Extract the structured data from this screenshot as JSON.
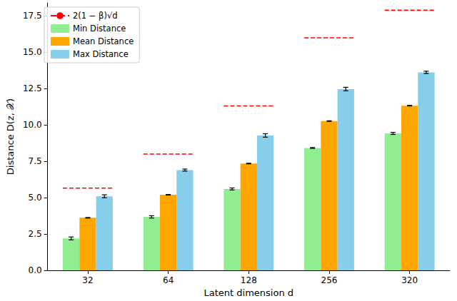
{
  "chart_data": {
    "type": "bar",
    "x_label": "Latent dimension d",
    "y_label": "Distance D(z, 𝒳)",
    "categories": [
      "32",
      "64",
      "128",
      "256",
      "320"
    ],
    "series": [
      {
        "name": "2(1 − β)√d",
        "type": "line",
        "color": "#ff0000",
        "line_style": "dashed",
        "values": [
          5.66,
          8.0,
          11.31,
          16.0,
          17.89
        ]
      },
      {
        "name": "Min Distance",
        "type": "bar",
        "color": "#90ee90",
        "values": [
          2.2,
          3.68,
          5.6,
          8.42,
          9.42
        ],
        "errors": [
          0.1,
          0.08,
          0.07,
          0.03,
          0.07
        ]
      },
      {
        "name": "Mean Distance",
        "type": "bar",
        "color": "#ffa500",
        "values": [
          3.62,
          5.2,
          7.35,
          10.27,
          11.33
        ],
        "errors": [
          0.02,
          0.02,
          0.02,
          0.02,
          0.02
        ]
      },
      {
        "name": "Max Distance",
        "type": "bar",
        "color": "#87ceeb",
        "values": [
          5.1,
          6.9,
          9.28,
          12.47,
          13.62
        ],
        "errors": [
          0.1,
          0.07,
          0.12,
          0.12,
          0.08
        ]
      }
    ],
    "ylim": [
      0,
      18.4
    ],
    "yticks": [
      {
        "value": 0,
        "label": "0.0"
      },
      {
        "value": 2.5,
        "label": "2.5"
      },
      {
        "value": 5,
        "label": "5.0"
      },
      {
        "value": 7.5,
        "label": "7.5"
      },
      {
        "value": 10,
        "label": "10.0"
      },
      {
        "value": 12.5,
        "label": "12.5"
      },
      {
        "value": 15,
        "label": "15.0"
      },
      {
        "value": 17.5,
        "label": "17.5"
      }
    ],
    "grid": false,
    "legend": "upper left"
  }
}
